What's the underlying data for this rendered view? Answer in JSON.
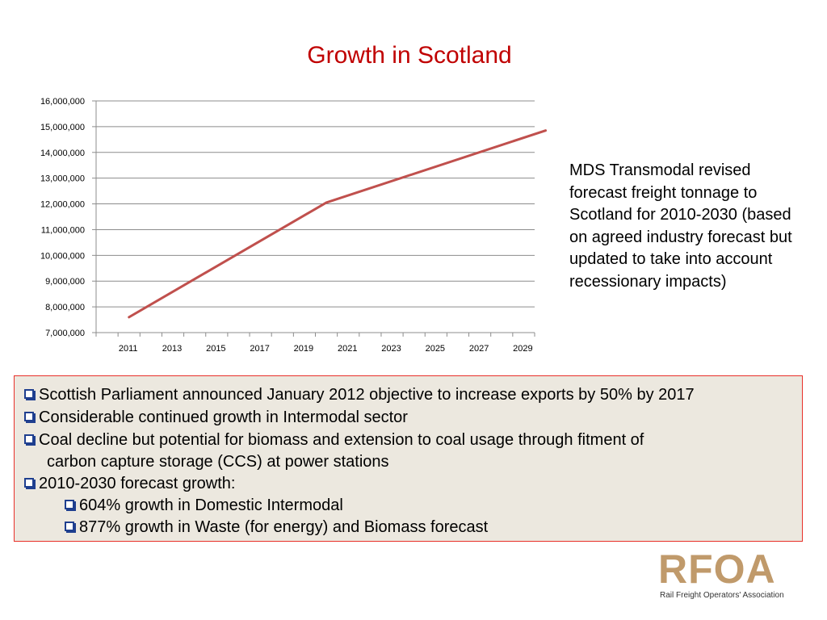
{
  "slide": {
    "title": "Growth in Scotland",
    "side_note": "MDS Transmodal revised forecast freight tonnage to Scotland for 2010-2030 (based on agreed industry forecast but updated to take into account recessionary impacts)"
  },
  "chart_data": {
    "type": "line",
    "title": "",
    "xlabel": "",
    "ylabel": "",
    "x_ticks": [
      "2011",
      "2013",
      "2015",
      "2017",
      "2019",
      "2021",
      "2023",
      "2025",
      "2027",
      "2029"
    ],
    "y_ticks": [
      "7,000,000",
      "8,000,000",
      "9,000,000",
      "10,000,000",
      "11,000,000",
      "12,000,000",
      "13,000,000",
      "14,000,000",
      "15,000,000",
      "16,000,000"
    ],
    "xlim": [
      2010,
      2030
    ],
    "ylim": [
      7000000,
      16000000
    ],
    "grid": "horizontal",
    "legend": "none",
    "series": [
      {
        "color": "#c0504d",
        "points": [
          [
            2011,
            7600000
          ],
          [
            2020,
            12050000
          ],
          [
            2030,
            14850000
          ]
        ]
      }
    ]
  },
  "bullets": {
    "b1": "Scottish Parliament announced January 2012 objective to increase exports by 50% by 2017",
    "b2": "Considerable continued growth in Intermodal sector",
    "b3": "Coal decline but potential for biomass and extension to coal usage through fitment of",
    "b3_cont": "carbon capture storage (CCS) at power stations",
    "b4": "2010-2030 forecast growth:",
    "b5": "604% growth in Domestic Intermodal",
    "b6": "877% growth in Waste (for energy) and Biomass forecast"
  },
  "logo": {
    "mark": "RFOA",
    "subtitle": "Rail Freight Operators' Association"
  },
  "colors": {
    "title": "#c00000",
    "line": "#c0504d",
    "box_border": "#e8302a",
    "box_bg": "#ece8df",
    "logo": "#c09a6b"
  }
}
